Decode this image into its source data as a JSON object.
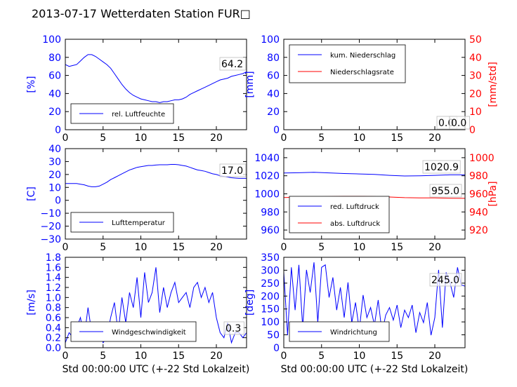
{
  "figure": {
    "title": "2013-07-17 Wetterdaten Station FUR□",
    "xlabel": "Std 00:00:00 UTC (+-22 Std Lokalzeit)",
    "colors": {
      "blue": "#0000ff",
      "red": "#ff0000",
      "axis": "#000000"
    }
  },
  "chart_data": [
    {
      "type": "line",
      "xlim": [
        0,
        24
      ],
      "ylim": [
        0,
        100
      ],
      "xticks": [
        "0",
        "5",
        "10",
        "15",
        "20"
      ],
      "yticks": [
        "0",
        "20",
        "40",
        "60",
        "80",
        "100"
      ],
      "ylabel": "[%]",
      "legend": [
        "rel. Luftfeuchte"
      ],
      "legend_loc": "lower-left",
      "annotation": "64.2",
      "series": [
        {
          "name": "rel. Luftfeuchte",
          "color": "#0000ff",
          "x": [
            0,
            0.5,
            1,
            1.5,
            2,
            2.5,
            3,
            3.5,
            4,
            4.5,
            5,
            5.5,
            6,
            6.5,
            7,
            7.5,
            8,
            8.5,
            9,
            9.5,
            10,
            10.5,
            11,
            11.5,
            12,
            12.5,
            13,
            13.5,
            14,
            14.5,
            15,
            15.5,
            16,
            16.5,
            17,
            17.5,
            18,
            18.5,
            19,
            19.5,
            20,
            20.5,
            21,
            21.5,
            22,
            22.5,
            23,
            23.5,
            24
          ],
          "y": [
            72,
            70,
            71,
            72,
            76,
            80,
            83,
            83,
            81,
            78,
            75,
            72,
            68,
            62,
            56,
            50,
            45,
            41,
            38,
            36,
            34,
            33,
            32,
            31,
            31,
            30,
            31,
            31,
            32,
            33,
            33,
            34,
            36,
            39,
            41,
            43,
            45,
            47,
            49,
            51,
            53,
            55,
            56,
            57,
            59,
            60,
            61,
            62,
            64
          ]
        }
      ]
    },
    {
      "type": "line",
      "xlim": [
        0,
        24
      ],
      "ylim": [
        0,
        100
      ],
      "y2lim": [
        0,
        50
      ],
      "xticks": [
        "0",
        "5",
        "10",
        "15",
        "20"
      ],
      "yticks": [
        "0",
        "20",
        "40",
        "60",
        "80",
        "100"
      ],
      "y2ticks": [
        "0",
        "10",
        "20",
        "30",
        "40",
        "50"
      ],
      "ylabel": "[mm]",
      "y2label": "[mm/std]",
      "legend": [
        "kum. Niederschlag",
        "Niederschlagsrate"
      ],
      "legend_loc": "upper-left",
      "annotation_a": "0.0",
      "annotation_b": "0.0",
      "series": [
        {
          "name": "kum. Niederschlag",
          "color": "#0000ff",
          "axis": "left",
          "x": [
            0,
            24
          ],
          "y": [
            0,
            0
          ]
        },
        {
          "name": "Niederschlagsrate",
          "color": "#ff0000",
          "axis": "right",
          "x": [
            0,
            24
          ],
          "y": [
            0,
            0
          ]
        }
      ]
    },
    {
      "type": "line",
      "xlim": [
        0,
        24
      ],
      "ylim": [
        -30,
        40
      ],
      "xticks": [
        "0",
        "5",
        "10",
        "15",
        "20"
      ],
      "yticks": [
        "−30",
        "−20",
        "−10",
        "0",
        "10",
        "20",
        "30",
        "40"
      ],
      "ylabel": "[C]",
      "legend": [
        "Lufttemperatur"
      ],
      "legend_loc": "lower-left",
      "annotation": "17.0",
      "series": [
        {
          "name": "Lufttemperatur",
          "color": "#0000ff",
          "x": [
            0,
            0.5,
            1,
            1.5,
            2,
            2.5,
            3,
            3.5,
            4,
            4.5,
            5,
            5.5,
            6,
            6.5,
            7,
            7.5,
            8,
            8.5,
            9,
            9.5,
            10,
            10.5,
            11,
            11.5,
            12,
            12.5,
            13,
            13.5,
            14,
            14.5,
            15,
            15.5,
            16,
            16.5,
            17,
            17.5,
            18,
            18.5,
            19,
            19.5,
            20,
            20.5,
            21,
            21.5,
            22,
            22.5,
            23,
            23.5,
            24
          ],
          "y": [
            13,
            13,
            13,
            13,
            12.5,
            12,
            11,
            10.5,
            10.5,
            11,
            12.5,
            14,
            16,
            17.5,
            19,
            20.5,
            22,
            23.5,
            24.5,
            25.5,
            26,
            26.5,
            27,
            27,
            27.3,
            27.5,
            27.5,
            27.5,
            27.8,
            27.8,
            27.5,
            27,
            26.5,
            25.5,
            24.5,
            23.5,
            23,
            22.5,
            21.5,
            20.5,
            20,
            19,
            18.5,
            18,
            17.5,
            17.2,
            17,
            17,
            17
          ]
        }
      ]
    },
    {
      "type": "line",
      "xlim": [
        0,
        24
      ],
      "ylim": [
        950,
        1050
      ],
      "y2lim": [
        910,
        1010
      ],
      "xticks": [
        "0",
        "5",
        "10",
        "15",
        "20"
      ],
      "yticks": [
        "960",
        "980",
        "1000",
        "1020",
        "1040"
      ],
      "y2ticks": [
        "920",
        "940",
        "960",
        "980",
        "1000"
      ],
      "ylabel": "",
      "y2label": "[hPa]",
      "legend": [
        "red. Luftdruck",
        "abs. Luftdruck"
      ],
      "legend_loc": "lower-left",
      "annotation_a": "1020.9",
      "annotation_b": "955.0",
      "series": [
        {
          "name": "red. Luftdruck",
          "color": "#0000ff",
          "axis": "left",
          "x": [
            0,
            2,
            4,
            6,
            8,
            10,
            12,
            14,
            16,
            18,
            20,
            22,
            24
          ],
          "y": [
            1023,
            1023.3,
            1023.8,
            1023.2,
            1022.5,
            1022,
            1021.5,
            1020.5,
            1019.8,
            1020,
            1020.5,
            1021,
            1021
          ]
        },
        {
          "name": "abs. Luftdruck",
          "color": "#ff0000",
          "axis": "right",
          "x": [
            0,
            2,
            4,
            6,
            8,
            10,
            12,
            14,
            16,
            18,
            20,
            22,
            24
          ],
          "y": [
            956,
            956.3,
            956.8,
            957,
            957.3,
            957.3,
            957,
            956.5,
            955.8,
            955.5,
            955.5,
            955.2,
            955
          ]
        }
      ]
    },
    {
      "type": "line",
      "xlim": [
        0,
        24
      ],
      "ylim": [
        0,
        1.8
      ],
      "xticks": [
        "0",
        "5",
        "10",
        "15",
        "20"
      ],
      "yticks": [
        "0.0",
        "0.2",
        "0.4",
        "0.6",
        "0.8",
        "1.0",
        "1.2",
        "1.4",
        "1.6",
        "1.8"
      ],
      "ylabel": "[m/s]",
      "legend": [
        "Windgeschwindigkeit"
      ],
      "legend_loc": "lower-left",
      "annotation": "0.3",
      "series": [
        {
          "name": "Windgeschwindigkeit",
          "color": "#0000ff",
          "x": [
            0,
            0.5,
            1,
            1.5,
            2,
            2.5,
            3,
            3.5,
            4,
            4.5,
            5,
            5.5,
            6,
            6.5,
            7,
            7.5,
            8,
            8.5,
            9,
            9.5,
            10,
            10.5,
            11,
            11.5,
            12,
            12.5,
            13,
            13.5,
            14,
            14.5,
            15,
            15.5,
            16,
            16.5,
            17,
            17.5,
            18,
            18.5,
            19,
            19.5,
            20,
            20.5,
            21,
            21.5,
            22,
            22.5,
            23,
            23.5,
            24
          ],
          "y": [
            0.1,
            0.3,
            0.2,
            0.4,
            0.6,
            0.2,
            0.8,
            0.3,
            0.5,
            0.3,
            0.1,
            0.2,
            0.6,
            0.9,
            0.3,
            1.0,
            0.5,
            1.1,
            0.8,
            1.4,
            0.6,
            1.5,
            0.9,
            1.1,
            1.6,
            0.7,
            1.2,
            0.8,
            1.1,
            1.3,
            0.9,
            1.0,
            1.1,
            0.8,
            1.2,
            1.3,
            1.0,
            1.2,
            0.9,
            1.1,
            0.6,
            0.3,
            0.2,
            0.5,
            0.1,
            0.3,
            0.3,
            0.2,
            0.3
          ]
        }
      ]
    },
    {
      "type": "line",
      "xlim": [
        0,
        24
      ],
      "ylim": [
        0,
        360
      ],
      "xticks": [
        "0",
        "5",
        "10",
        "15",
        "20"
      ],
      "yticks": [
        "0",
        "50",
        "100",
        "150",
        "200",
        "250",
        "300",
        "350"
      ],
      "ylabel": "[deg]",
      "legend": [
        "Windrichtung"
      ],
      "legend_loc": "lower-left",
      "annotation": "245.0",
      "series": [
        {
          "name": "Windrichtung",
          "color": "#0000ff",
          "x": [
            0,
            0.5,
            1,
            1.5,
            2,
            2.5,
            3,
            3.5,
            4,
            4.5,
            5,
            5.5,
            6,
            6.5,
            7,
            7.5,
            8,
            8.5,
            9,
            9.5,
            10,
            10.5,
            11,
            11.5,
            12,
            12.5,
            13,
            13.5,
            14,
            14.5,
            15,
            15.5,
            16,
            16.5,
            17,
            17.5,
            18,
            18.5,
            19,
            19.5,
            20,
            20.5,
            21,
            21.5,
            22,
            22.5,
            23,
            23.5,
            24
          ],
          "y": [
            300,
            50,
            320,
            150,
            330,
            80,
            310,
            220,
            340,
            100,
            320,
            330,
            200,
            280,
            150,
            240,
            120,
            260,
            100,
            180,
            70,
            210,
            120,
            160,
            90,
            190,
            60,
            130,
            160,
            110,
            170,
            80,
            150,
            120,
            170,
            60,
            140,
            100,
            180,
            50,
            120,
            310,
            80,
            300,
            260,
            200,
            320,
            250,
            245
          ]
        }
      ]
    }
  ]
}
